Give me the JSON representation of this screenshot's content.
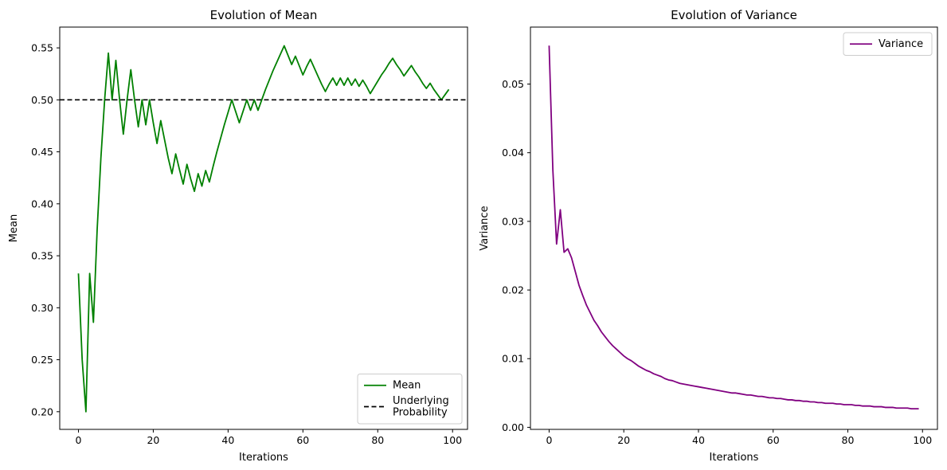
{
  "chart_data": [
    {
      "type": "line",
      "title": "Evolution of Mean",
      "xlabel": "Iterations",
      "ylabel": "Mean",
      "xlim": [
        -5,
        104
      ],
      "ylim": [
        0.183,
        0.57
      ],
      "xticks": [
        0,
        20,
        40,
        60,
        80,
        100
      ],
      "yticks": [
        0.2,
        0.25,
        0.3,
        0.35,
        0.4,
        0.45,
        0.5,
        0.55
      ],
      "ytick_labels": [
        "0.20",
        "0.25",
        "0.30",
        "0.35",
        "0.40",
        "0.45",
        "0.50",
        "0.55"
      ],
      "grid": false,
      "legend_position": "lower-right",
      "series": [
        {
          "name": "Mean",
          "color": "#008000",
          "style": "solid",
          "x": [
            0,
            1,
            2,
            3,
            4,
            5,
            6,
            7,
            8,
            9,
            10,
            11,
            12,
            13,
            14,
            15,
            16,
            17,
            18,
            19,
            20,
            21,
            22,
            23,
            24,
            25,
            26,
            27,
            28,
            29,
            30,
            31,
            32,
            33,
            34,
            35,
            36,
            37,
            38,
            39,
            40,
            41,
            42,
            43,
            44,
            45,
            46,
            47,
            48,
            49,
            50,
            51,
            52,
            53,
            54,
            55,
            56,
            57,
            58,
            59,
            60,
            61,
            62,
            63,
            64,
            65,
            66,
            67,
            68,
            69,
            70,
            71,
            72,
            73,
            74,
            75,
            76,
            77,
            78,
            79,
            80,
            81,
            82,
            83,
            84,
            85,
            86,
            87,
            88,
            89,
            90,
            91,
            92,
            93,
            94,
            95,
            96,
            97,
            98,
            99
          ],
          "values": [
            0.333,
            0.25,
            0.2,
            0.333,
            0.286,
            0.375,
            0.444,
            0.5,
            0.545,
            0.5,
            0.538,
            0.5,
            0.467,
            0.5,
            0.529,
            0.5,
            0.474,
            0.5,
            0.476,
            0.5,
            0.478,
            0.458,
            0.48,
            0.462,
            0.444,
            0.429,
            0.448,
            0.433,
            0.419,
            0.438,
            0.424,
            0.412,
            0.429,
            0.417,
            0.432,
            0.421,
            0.436,
            0.45,
            0.463,
            0.476,
            0.488,
            0.5,
            0.489,
            0.478,
            0.489,
            0.5,
            0.49,
            0.5,
            0.49,
            0.5,
            0.51,
            0.519,
            0.528,
            0.536,
            0.544,
            0.552,
            0.543,
            0.534,
            0.542,
            0.533,
            0.524,
            0.532,
            0.539,
            0.531,
            0.523,
            0.515,
            0.508,
            0.515,
            0.521,
            0.514,
            0.521,
            0.514,
            0.521,
            0.514,
            0.52,
            0.513,
            0.519,
            0.513,
            0.506,
            0.512,
            0.518,
            0.524,
            0.529,
            0.535,
            0.54,
            0.534,
            0.529,
            0.523,
            0.528,
            0.533,
            0.527,
            0.522,
            0.516,
            0.511,
            0.516,
            0.51,
            0.505,
            0.5,
            0.505,
            0.51
          ]
        },
        {
          "name": "Underlying\nProbability",
          "color": "#000000",
          "style": "dashed",
          "hline": 0.5
        }
      ]
    },
    {
      "type": "line",
      "title": "Evolution of Variance",
      "xlabel": "Iterations",
      "ylabel": "Variance",
      "xlim": [
        -5,
        104
      ],
      "ylim": [
        -0.0003,
        0.0583
      ],
      "xticks": [
        0,
        20,
        40,
        60,
        80,
        100
      ],
      "yticks": [
        0.0,
        0.01,
        0.02,
        0.03,
        0.04,
        0.05
      ],
      "ytick_labels": [
        "0.00",
        "0.01",
        "0.02",
        "0.03",
        "0.04",
        "0.05"
      ],
      "grid": false,
      "legend_position": "upper-right",
      "series": [
        {
          "name": "Variance",
          "color": "#800080",
          "style": "solid",
          "x": [
            0,
            1,
            2,
            3,
            4,
            5,
            6,
            7,
            8,
            9,
            10,
            11,
            12,
            13,
            14,
            15,
            16,
            17,
            18,
            19,
            20,
            21,
            22,
            23,
            24,
            25,
            26,
            27,
            28,
            29,
            30,
            31,
            32,
            33,
            34,
            35,
            36,
            37,
            38,
            39,
            40,
            41,
            42,
            43,
            44,
            45,
            46,
            47,
            48,
            49,
            50,
            51,
            52,
            53,
            54,
            55,
            56,
            57,
            58,
            59,
            60,
            61,
            62,
            63,
            64,
            65,
            66,
            67,
            68,
            69,
            70,
            71,
            72,
            73,
            74,
            75,
            76,
            77,
            78,
            79,
            80,
            81,
            82,
            83,
            84,
            85,
            86,
            87,
            88,
            89,
            90,
            91,
            92,
            93,
            94,
            95,
            96,
            97,
            98,
            99
          ],
          "values": [
            0.0556,
            0.0375,
            0.0267,
            0.0317,
            0.0255,
            0.026,
            0.0247,
            0.0227,
            0.0207,
            0.0192,
            0.0178,
            0.0167,
            0.0156,
            0.0148,
            0.0139,
            0.0132,
            0.0125,
            0.0119,
            0.0114,
            0.0109,
            0.0104,
            0.01,
            0.0097,
            0.0093,
            0.0089,
            0.0086,
            0.0083,
            0.0081,
            0.0078,
            0.0076,
            0.0074,
            0.0071,
            0.0069,
            0.0068,
            0.0066,
            0.0064,
            0.0063,
            0.0062,
            0.0061,
            0.006,
            0.0059,
            0.0058,
            0.0057,
            0.0056,
            0.0055,
            0.0054,
            0.0053,
            0.0052,
            0.0051,
            0.005,
            0.005,
            0.0049,
            0.0048,
            0.0047,
            0.0047,
            0.0046,
            0.0045,
            0.0045,
            0.0044,
            0.0043,
            0.0043,
            0.0042,
            0.0042,
            0.0041,
            0.004,
            0.004,
            0.0039,
            0.0039,
            0.0038,
            0.0038,
            0.0037,
            0.0037,
            0.0036,
            0.0036,
            0.0035,
            0.0035,
            0.0035,
            0.0034,
            0.0034,
            0.0033,
            0.0033,
            0.0033,
            0.0032,
            0.0032,
            0.0031,
            0.0031,
            0.0031,
            0.003,
            0.003,
            0.003,
            0.0029,
            0.0029,
            0.0029,
            0.0028,
            0.0028,
            0.0028,
            0.0028,
            0.0027,
            0.0027,
            0.0027
          ]
        }
      ]
    }
  ]
}
